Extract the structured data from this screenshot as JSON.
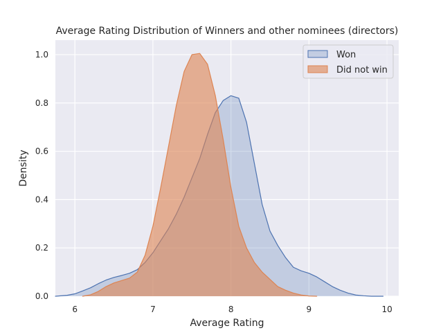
{
  "chart_data": {
    "type": "area",
    "title": "Average Rating Distribution of Winners and other nominees (directors)",
    "xlabel": "Average Rating",
    "ylabel": "Density",
    "xlim": [
      5.75,
      10.15
    ],
    "ylim": [
      0,
      1.06
    ],
    "xticks": [
      "6",
      "7",
      "8",
      "9",
      "10"
    ],
    "yticks": [
      "0.0",
      "0.2",
      "0.4",
      "0.6",
      "0.8",
      "1.0"
    ],
    "grid": true,
    "legend_position": "top-right",
    "series": [
      {
        "name": "Won",
        "color": "#4c72b0",
        "fill": "#4c72b0",
        "fill_opacity": 0.25,
        "x": [
          5.75,
          5.9,
          6.0,
          6.1,
          6.2,
          6.3,
          6.4,
          6.5,
          6.6,
          6.7,
          6.8,
          6.9,
          7.0,
          7.1,
          7.2,
          7.3,
          7.4,
          7.5,
          7.6,
          7.7,
          7.8,
          7.9,
          8.0,
          8.1,
          8.2,
          8.3,
          8.4,
          8.5,
          8.6,
          8.7,
          8.8,
          8.9,
          9.0,
          9.1,
          9.2,
          9.3,
          9.4,
          9.5,
          9.6,
          9.7,
          9.8,
          9.95
        ],
        "y": [
          0.0,
          0.004,
          0.01,
          0.022,
          0.035,
          0.052,
          0.067,
          0.078,
          0.086,
          0.095,
          0.11,
          0.14,
          0.18,
          0.23,
          0.28,
          0.34,
          0.41,
          0.49,
          0.57,
          0.67,
          0.76,
          0.81,
          0.83,
          0.82,
          0.72,
          0.55,
          0.38,
          0.27,
          0.21,
          0.16,
          0.12,
          0.105,
          0.095,
          0.08,
          0.06,
          0.04,
          0.025,
          0.013,
          0.005,
          0.002,
          0.0,
          0.0
        ]
      },
      {
        "name": "Did not win",
        "color": "#dd8452",
        "fill": "#dd8452",
        "fill_opacity": 0.6,
        "x": [
          6.1,
          6.2,
          6.3,
          6.4,
          6.5,
          6.6,
          6.7,
          6.8,
          6.9,
          7.0,
          7.1,
          7.2,
          7.3,
          7.4,
          7.5,
          7.6,
          7.7,
          7.8,
          7.9,
          8.0,
          8.1,
          8.2,
          8.3,
          8.4,
          8.5,
          8.6,
          8.7,
          8.8,
          8.9,
          9.0,
          9.1
        ],
        "y": [
          0.0,
          0.006,
          0.02,
          0.04,
          0.055,
          0.065,
          0.075,
          0.1,
          0.17,
          0.29,
          0.45,
          0.62,
          0.79,
          0.93,
          1.0,
          1.005,
          0.96,
          0.83,
          0.65,
          0.45,
          0.29,
          0.2,
          0.14,
          0.1,
          0.07,
          0.04,
          0.025,
          0.013,
          0.005,
          0.001,
          0.0
        ]
      }
    ]
  }
}
